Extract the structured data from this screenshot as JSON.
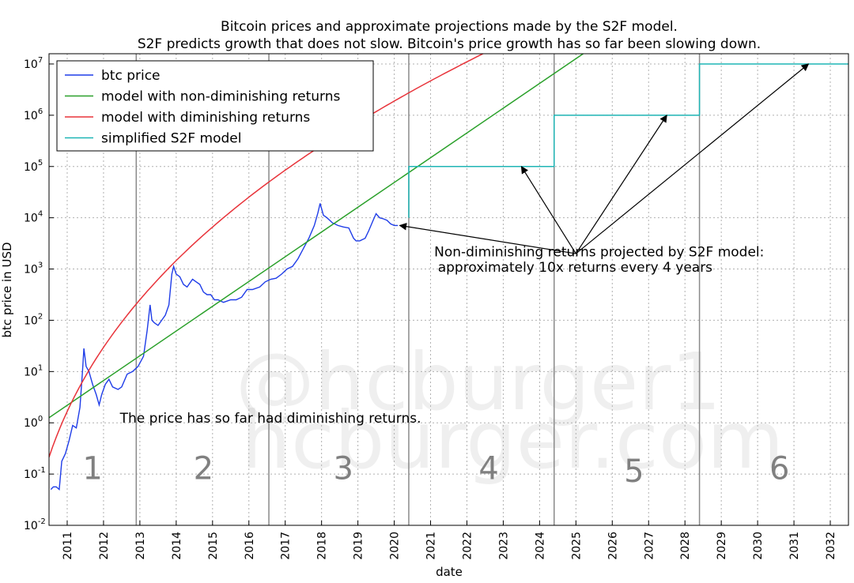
{
  "colors": {
    "btc": "#1f3de8",
    "model_nondim": "#2aa02a",
    "model_dim": "#e8333a",
    "s2f": "#1fb5b5",
    "grid": "#b0b0b0",
    "halving": "#8a8a8a"
  },
  "watermark": [
    "@hcburger1",
    "hcburger.com"
  ],
  "chart_data": {
    "type": "line",
    "title": "Bitcoin prices and approximate projections made by the S2F model.",
    "subtitle": "S2F predicts growth that does not slow. Bitcoin's price growth has so far been slowing down.",
    "xlabel": "date",
    "ylabel": "btc price in USD",
    "xlim": [
      2010.5,
      2032.5
    ],
    "ylim_log10": [
      -2,
      7.2
    ],
    "x_ticks": [
      "2011",
      "2012",
      "2013",
      "2014",
      "2015",
      "2016",
      "2017",
      "2018",
      "2019",
      "2020",
      "2021",
      "2022",
      "2023",
      "2024",
      "2025",
      "2026",
      "2027",
      "2028",
      "2029",
      "2030",
      "2031",
      "2032"
    ],
    "y_ticks": [
      {
        "base": "10",
        "exp": "-2",
        "log": -2
      },
      {
        "base": "10",
        "exp": "-1",
        "log": -1
      },
      {
        "base": "10",
        "exp": "0",
        "log": 0
      },
      {
        "base": "10",
        "exp": "1",
        "log": 1
      },
      {
        "base": "10",
        "exp": "2",
        "log": 2
      },
      {
        "base": "10",
        "exp": "3",
        "log": 3
      },
      {
        "base": "10",
        "exp": "4",
        "log": 4
      },
      {
        "base": "10",
        "exp": "5",
        "log": 5
      },
      {
        "base": "10",
        "exp": "6",
        "log": 6
      },
      {
        "base": "10",
        "exp": "7",
        "log": 7
      }
    ],
    "grid": true,
    "legend": {
      "placement": "top-left",
      "entries": [
        {
          "label": "btc price",
          "series": "btc"
        },
        {
          "label": "model with non-diminishing returns",
          "series": "model_nondim"
        },
        {
          "label": "model with diminishing returns",
          "series": "model_dim"
        },
        {
          "label": "simplified S2F model",
          "series": "s2f"
        }
      ]
    },
    "halvings": [
      2012.9,
      2016.55,
      2020.4,
      2024.4,
      2028.4
    ],
    "eras": [
      {
        "label": "1",
        "x": 2011.7,
        "y_log": -1.1
      },
      {
        "label": "2",
        "x": 2014.75,
        "y_log": -1.1
      },
      {
        "label": "3",
        "x": 2018.6,
        "y_log": -1.1
      },
      {
        "label": "4",
        "x": 2022.6,
        "y_log": -1.1
      },
      {
        "label": "5",
        "x": 2026.6,
        "y_log": -1.15
      },
      {
        "label": "6",
        "x": 2030.6,
        "y_log": -1.1
      }
    ],
    "series": [
      {
        "name": "btc price",
        "key": "btc",
        "points": [
          [
            2010.55,
            -1.3
          ],
          [
            2010.62,
            -1.25
          ],
          [
            2010.7,
            -1.25
          ],
          [
            2010.78,
            -1.3
          ],
          [
            2010.85,
            -0.75
          ],
          [
            2010.95,
            -0.6
          ],
          [
            2011.05,
            -0.35
          ],
          [
            2011.15,
            -0.05
          ],
          [
            2011.25,
            -0.1
          ],
          [
            2011.35,
            0.3
          ],
          [
            2011.42,
            1.0
          ],
          [
            2011.46,
            1.45
          ],
          [
            2011.52,
            1.1
          ],
          [
            2011.6,
            1.0
          ],
          [
            2011.7,
            0.75
          ],
          [
            2011.8,
            0.55
          ],
          [
            2011.88,
            0.35
          ],
          [
            2011.95,
            0.55
          ],
          [
            2012.05,
            0.75
          ],
          [
            2012.15,
            0.85
          ],
          [
            2012.25,
            0.7
          ],
          [
            2012.4,
            0.65
          ],
          [
            2012.5,
            0.7
          ],
          [
            2012.65,
            0.95
          ],
          [
            2012.8,
            1.0
          ],
          [
            2012.95,
            1.1
          ],
          [
            2013.1,
            1.3
          ],
          [
            2013.2,
            1.8
          ],
          [
            2013.28,
            2.3
          ],
          [
            2013.33,
            2.0
          ],
          [
            2013.4,
            1.95
          ],
          [
            2013.5,
            1.9
          ],
          [
            2013.6,
            2.0
          ],
          [
            2013.7,
            2.1
          ],
          [
            2013.8,
            2.3
          ],
          [
            2013.88,
            2.9
          ],
          [
            2013.93,
            3.05
          ],
          [
            2014.0,
            2.9
          ],
          [
            2014.1,
            2.85
          ],
          [
            2014.2,
            2.7
          ],
          [
            2014.3,
            2.65
          ],
          [
            2014.45,
            2.8
          ],
          [
            2014.55,
            2.75
          ],
          [
            2014.65,
            2.7
          ],
          [
            2014.75,
            2.55
          ],
          [
            2014.85,
            2.5
          ],
          [
            2014.95,
            2.5
          ],
          [
            2015.05,
            2.4
          ],
          [
            2015.15,
            2.4
          ],
          [
            2015.3,
            2.35
          ],
          [
            2015.5,
            2.4
          ],
          [
            2015.65,
            2.4
          ],
          [
            2015.8,
            2.45
          ],
          [
            2015.95,
            2.6
          ],
          [
            2016.1,
            2.6
          ],
          [
            2016.3,
            2.65
          ],
          [
            2016.45,
            2.75
          ],
          [
            2016.6,
            2.8
          ],
          [
            2016.75,
            2.82
          ],
          [
            2016.9,
            2.9
          ],
          [
            2017.05,
            3.0
          ],
          [
            2017.2,
            3.05
          ],
          [
            2017.35,
            3.2
          ],
          [
            2017.5,
            3.4
          ],
          [
            2017.65,
            3.6
          ],
          [
            2017.8,
            3.85
          ],
          [
            2017.9,
            4.1
          ],
          [
            2017.96,
            4.28
          ],
          [
            2018.05,
            4.05
          ],
          [
            2018.15,
            4.0
          ],
          [
            2018.3,
            3.9
          ],
          [
            2018.45,
            3.85
          ],
          [
            2018.6,
            3.82
          ],
          [
            2018.75,
            3.8
          ],
          [
            2018.88,
            3.6
          ],
          [
            2018.95,
            3.55
          ],
          [
            2019.05,
            3.55
          ],
          [
            2019.2,
            3.6
          ],
          [
            2019.3,
            3.75
          ],
          [
            2019.42,
            3.95
          ],
          [
            2019.5,
            4.08
          ],
          [
            2019.6,
            4.0
          ],
          [
            2019.7,
            3.98
          ],
          [
            2019.8,
            3.95
          ],
          [
            2019.9,
            3.88
          ],
          [
            2020.0,
            3.85
          ],
          [
            2020.1,
            3.85
          ]
        ]
      },
      {
        "name": "model with non-diminishing returns",
        "key": "model_nondim",
        "type": "linear_log",
        "x0": 2010.5,
        "y0_log": 0.1,
        "x1": 2025.2,
        "y1_log": 7.2
      },
      {
        "name": "model with diminishing returns",
        "key": "model_dim",
        "type": "power_log",
        "x_start": 2010.5,
        "x_end": 2032.5,
        "t0": 2009.8,
        "a": 4.5,
        "p": 0.38,
        "c": -4.6
      },
      {
        "name": "simplified S2F model",
        "key": "s2f",
        "steps": [
          [
            2020.4,
            4.0
          ],
          [
            2020.4,
            5.0
          ],
          [
            2024.4,
            5.0
          ],
          [
            2024.4,
            6.0
          ],
          [
            2028.4,
            6.0
          ],
          [
            2028.4,
            7.0
          ],
          [
            2032.5,
            7.0
          ]
        ]
      }
    ],
    "annotations": [
      {
        "text": "Non-diminishing returns projected by S2F model:",
        "x": 2021.1,
        "y_log": 3.25
      },
      {
        "text": "approximately 10x returns every 4 years",
        "x": 2021.2,
        "y_log": 2.95
      },
      {
        "text": "The price has so far had diminishing returns.",
        "x": 2012.45,
        "y_log": 0.0
      }
    ],
    "arrows": [
      {
        "from": [
          2025.0,
          3.3
        ],
        "to": [
          2020.15,
          3.85
        ]
      },
      {
        "from": [
          2025.0,
          3.3
        ],
        "to": [
          2023.5,
          5.0
        ]
      },
      {
        "from": [
          2025.0,
          3.3
        ],
        "to": [
          2027.5,
          6.0
        ]
      },
      {
        "from": [
          2025.0,
          3.3
        ],
        "to": [
          2031.4,
          7.0
        ]
      }
    ]
  }
}
